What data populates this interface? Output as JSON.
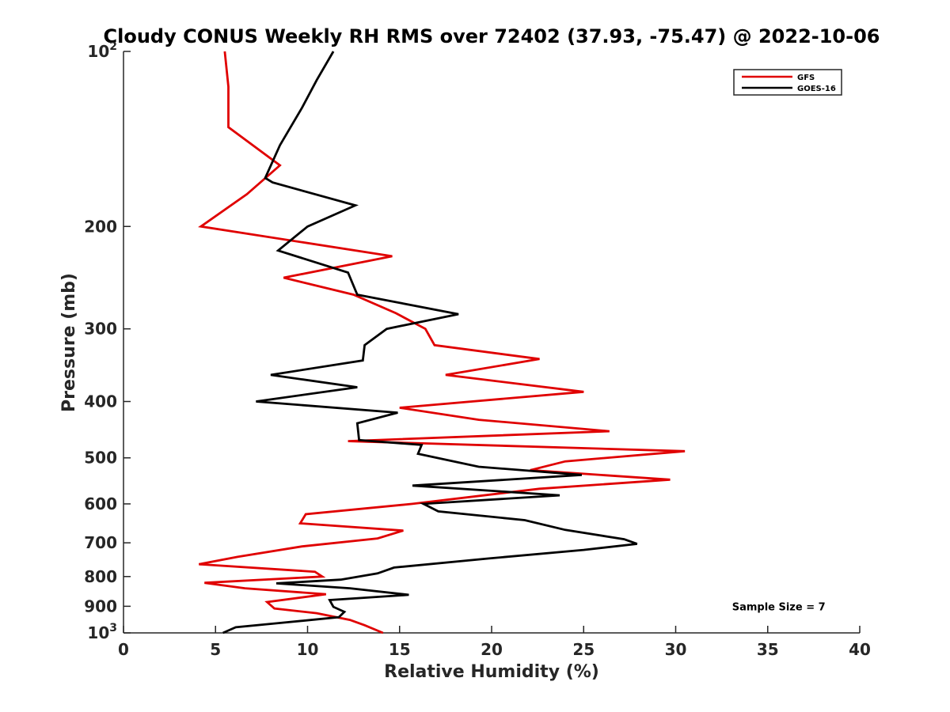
{
  "chart_data": {
    "type": "line",
    "title": "Cloudy CONUS Weekly RH RMS over 72402 (37.93, -75.47) @ 2022-10-06",
    "xlabel": "Relative Humidity (%)",
    "ylabel": "Pressure (mb)",
    "xlim": [
      0,
      40
    ],
    "ylim": [
      100,
      1000
    ],
    "y_scale": "log",
    "y_reversed": true,
    "x_ticks": [
      0,
      5,
      10,
      15,
      20,
      25,
      30,
      35,
      40
    ],
    "x_tick_labels": [
      "0",
      "5",
      "10",
      "15",
      "20",
      "25",
      "30",
      "35",
      "40"
    ],
    "y_ticks": [
      100,
      200,
      300,
      400,
      500,
      600,
      700,
      800,
      900,
      1000
    ],
    "y_tick_labels": [
      {
        "base": "10",
        "exp": "2"
      },
      {
        "base": "200",
        "exp": ""
      },
      {
        "base": "300",
        "exp": ""
      },
      {
        "base": "400",
        "exp": ""
      },
      {
        "base": "500",
        "exp": ""
      },
      {
        "base": "600",
        "exp": ""
      },
      {
        "base": "700",
        "exp": ""
      },
      {
        "base": "800",
        "exp": ""
      },
      {
        "base": "900",
        "exp": ""
      },
      {
        "base": "10",
        "exp": "3"
      }
    ],
    "grid": false,
    "legend_position": "top-right",
    "series": [
      {
        "name": "GFS",
        "color": "#e00000",
        "points": [
          [
            5.5,
            100
          ],
          [
            5.7,
            115
          ],
          [
            5.7,
            135
          ],
          [
            8.5,
            157
          ],
          [
            6.7,
            176
          ],
          [
            4.2,
            200
          ],
          [
            14.6,
            225
          ],
          [
            8.7,
            245
          ],
          [
            12.5,
            262
          ],
          [
            14.8,
            282
          ],
          [
            16.4,
            300
          ],
          [
            16.9,
            320
          ],
          [
            22.6,
            338
          ],
          [
            17.5,
            360
          ],
          [
            25.0,
            385
          ],
          [
            15.0,
            410
          ],
          [
            19.3,
            430
          ],
          [
            26.4,
            450
          ],
          [
            12.2,
            468
          ],
          [
            30.5,
            487
          ],
          [
            24.0,
            507
          ],
          [
            22.1,
            525
          ],
          [
            29.7,
            545
          ],
          [
            22.6,
            565
          ],
          [
            15.7,
            600
          ],
          [
            9.9,
            625
          ],
          [
            9.6,
            648
          ],
          [
            15.2,
            667
          ],
          [
            13.8,
            688
          ],
          [
            9.7,
            710
          ],
          [
            6.2,
            740
          ],
          [
            4.1,
            762
          ],
          [
            10.4,
            785
          ],
          [
            10.8,
            800
          ],
          [
            4.4,
            820
          ],
          [
            6.6,
            838
          ],
          [
            11.0,
            858
          ],
          [
            7.8,
            885
          ],
          [
            8.2,
            908
          ],
          [
            10.5,
            925
          ],
          [
            12.3,
            950
          ],
          [
            13.1,
            970
          ],
          [
            14.1,
            1000
          ]
        ]
      },
      {
        "name": "GOES-16",
        "color": "#000000",
        "points": [
          [
            11.4,
            100
          ],
          [
            10.5,
            112
          ],
          [
            9.7,
            125
          ],
          [
            8.5,
            145
          ],
          [
            7.7,
            165
          ],
          [
            8.1,
            168
          ],
          [
            12.6,
            184
          ],
          [
            10.0,
            200
          ],
          [
            8.4,
            220
          ],
          [
            12.2,
            240
          ],
          [
            12.7,
            262
          ],
          [
            18.2,
            283
          ],
          [
            14.3,
            300
          ],
          [
            13.1,
            320
          ],
          [
            13.0,
            340
          ],
          [
            8.0,
            360
          ],
          [
            12.7,
            378
          ],
          [
            7.2,
            400
          ],
          [
            14.9,
            418
          ],
          [
            12.7,
            436
          ],
          [
            12.8,
            466
          ],
          [
            16.2,
            475
          ],
          [
            16.0,
            492
          ],
          [
            19.3,
            518
          ],
          [
            24.9,
            535
          ],
          [
            15.7,
            558
          ],
          [
            23.7,
            580
          ],
          [
            16.3,
            600
          ],
          [
            17.1,
            618
          ],
          [
            21.8,
            640
          ],
          [
            24.0,
            665
          ],
          [
            27.2,
            690
          ],
          [
            27.9,
            703
          ],
          [
            25.0,
            720
          ],
          [
            19.8,
            745
          ],
          [
            14.7,
            772
          ],
          [
            13.8,
            790
          ],
          [
            11.8,
            810
          ],
          [
            8.3,
            822
          ],
          [
            12.3,
            838
          ],
          [
            15.5,
            860
          ],
          [
            11.2,
            878
          ],
          [
            11.4,
            902
          ],
          [
            12.0,
            920
          ],
          [
            11.7,
            940
          ],
          [
            8.7,
            960
          ],
          [
            6.1,
            978
          ],
          [
            5.4,
            1000
          ]
        ]
      }
    ],
    "annotations": [
      {
        "text": "Sample Size = 7",
        "x": 35.6,
        "y": 900
      }
    ]
  }
}
